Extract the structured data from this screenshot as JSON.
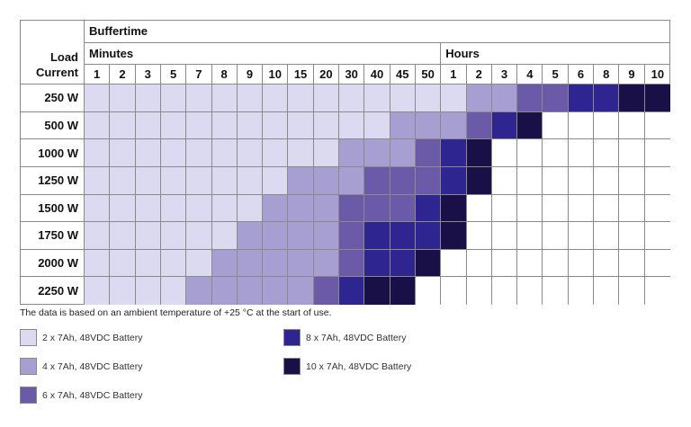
{
  "table": {
    "corner_label_line1": "Load",
    "corner_label_line2": "Current",
    "buffertime_label": "Buffertime",
    "minutes_label": "Minutes",
    "hours_label": "Hours",
    "minute_columns": [
      "1",
      "2",
      "3",
      "5",
      "7",
      "8",
      "9",
      "10",
      "15",
      "20",
      "30",
      "40",
      "45",
      "50"
    ],
    "hour_columns": [
      "1",
      "2",
      "3",
      "4",
      "5",
      "6",
      "8",
      "9",
      "10"
    ],
    "rows": [
      {
        "load": "250 W",
        "levels": [
          1,
          1,
          1,
          1,
          1,
          1,
          1,
          1,
          1,
          1,
          1,
          1,
          1,
          1,
          1,
          2,
          2,
          3,
          3,
          4,
          4,
          5,
          5
        ]
      },
      {
        "load": "500 W",
        "levels": [
          1,
          1,
          1,
          1,
          1,
          1,
          1,
          1,
          1,
          1,
          1,
          1,
          2,
          2,
          2,
          3,
          4,
          5,
          0,
          0,
          0,
          0,
          0
        ]
      },
      {
        "load": "1000 W",
        "levels": [
          1,
          1,
          1,
          1,
          1,
          1,
          1,
          1,
          1,
          1,
          2,
          2,
          2,
          3,
          4,
          5,
          0,
          0,
          0,
          0,
          0,
          0,
          0
        ]
      },
      {
        "load": "1250 W",
        "levels": [
          1,
          1,
          1,
          1,
          1,
          1,
          1,
          1,
          2,
          2,
          2,
          3,
          3,
          3,
          4,
          5,
          0,
          0,
          0,
          0,
          0,
          0,
          0
        ]
      },
      {
        "load": "1500 W",
        "levels": [
          1,
          1,
          1,
          1,
          1,
          1,
          1,
          2,
          2,
          2,
          3,
          3,
          3,
          4,
          5,
          0,
          0,
          0,
          0,
          0,
          0,
          0,
          0
        ]
      },
      {
        "load": "1750 W",
        "levels": [
          1,
          1,
          1,
          1,
          1,
          1,
          2,
          2,
          2,
          2,
          3,
          4,
          4,
          4,
          5,
          0,
          0,
          0,
          0,
          0,
          0,
          0,
          0
        ]
      },
      {
        "load": "2000 W",
        "levels": [
          1,
          1,
          1,
          1,
          1,
          2,
          2,
          2,
          2,
          2,
          3,
          4,
          4,
          5,
          0,
          0,
          0,
          0,
          0,
          0,
          0,
          0,
          0
        ]
      },
      {
        "load": "2250 W",
        "levels": [
          1,
          1,
          1,
          1,
          2,
          2,
          2,
          2,
          2,
          3,
          4,
          5,
          5,
          0,
          0,
          0,
          0,
          0,
          0,
          0,
          0,
          0,
          0
        ]
      }
    ]
  },
  "colors": {
    "level_0": "#ffffff",
    "level_1": "#dcdaf0",
    "level_2": "#a79fd2",
    "level_3": "#6a5aa8",
    "level_4": "#2e2590",
    "level_5": "#1a1048",
    "border": "#8a8a8a"
  },
  "note": "The data is based on an ambient temperature of +25 °C at the start of use.",
  "legend": [
    {
      "label": "2 x 7Ah, 48VDC Battery",
      "level": 1
    },
    {
      "label": "4 x 7Ah, 48VDC Battery",
      "level": 2
    },
    {
      "label": "6 x 7Ah, 48VDC Battery",
      "level": 3
    },
    {
      "label": "8 x 7Ah, 48VDC Battery",
      "level": 4
    },
    {
      "label": "10 x 7Ah, 48VDC Battery",
      "level": 5
    }
  ]
}
